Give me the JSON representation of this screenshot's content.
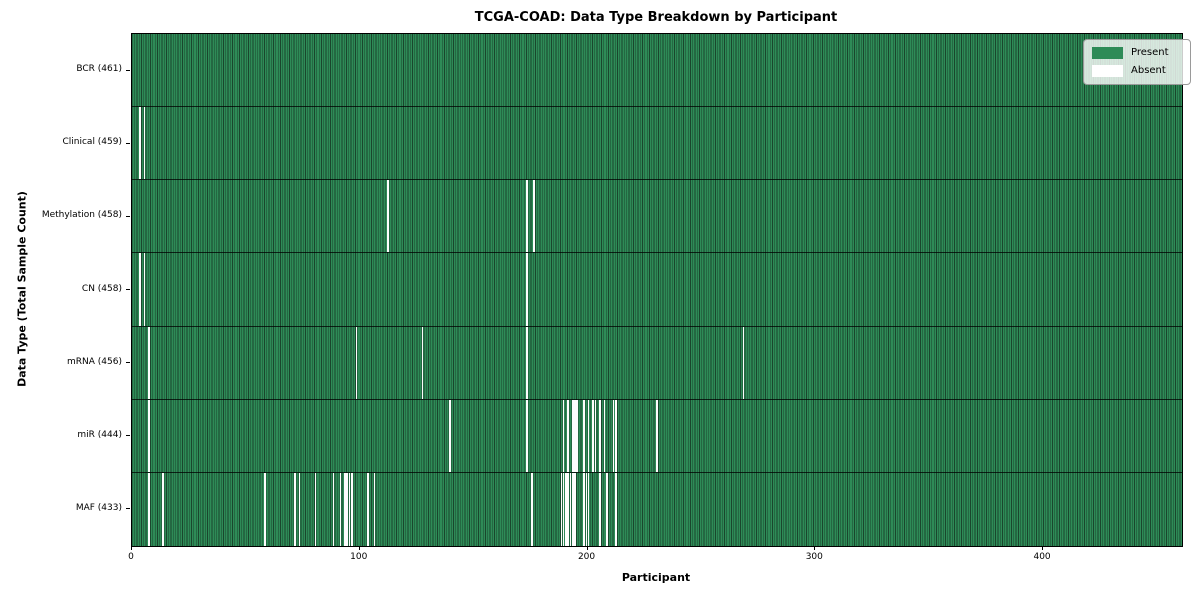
{
  "chart_data": {
    "type": "heatmap",
    "title": "TCGA-COAD: Data Type Breakdown by Participant",
    "xlabel": "Participant",
    "ylabel": "Data Type (Total Sample Count)",
    "n_participants": 461,
    "x_ticks": [
      0,
      100,
      200,
      300,
      400
    ],
    "legend": [
      "Present",
      "Absent"
    ],
    "legend_position": "upper right",
    "grid": false,
    "colors": {
      "present": "#2e8b57",
      "absent": "#fdfdfd",
      "cell_edge": "#1a462d",
      "spine": "#000000"
    },
    "rows": [
      {
        "label": "BCR",
        "total": 461,
        "absent_participants": []
      },
      {
        "label": "Clinical",
        "total": 459,
        "absent_participants": [
          3,
          5
        ]
      },
      {
        "label": "Methylation",
        "total": 458,
        "absent_participants": [
          112,
          173,
          176
        ]
      },
      {
        "label": "CN",
        "total": 458,
        "absent_participants": [
          3,
          5,
          173
        ]
      },
      {
        "label": "mRNA",
        "total": 456,
        "absent_participants": [
          7,
          98,
          127,
          173,
          268
        ]
      },
      {
        "label": "miR",
        "total": 444,
        "absent_participants": [
          7,
          139,
          173,
          189,
          191,
          193,
          194,
          195,
          198,
          200,
          202,
          203,
          205,
          207,
          211,
          212,
          230
        ]
      },
      {
        "label": "MAF",
        "total": 433,
        "absent_participants": [
          7,
          13,
          58,
          71,
          73,
          80,
          88,
          91,
          93,
          94,
          95,
          96,
          103,
          106,
          175,
          188,
          189,
          190,
          191,
          192,
          193,
          194,
          198,
          199,
          200,
          205,
          208,
          212
        ]
      }
    ]
  }
}
